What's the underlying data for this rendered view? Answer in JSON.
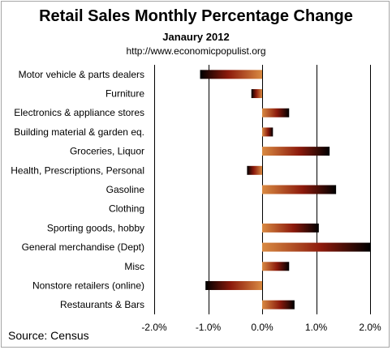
{
  "chart_data": {
    "type": "bar",
    "orientation": "horizontal",
    "title": "Retail Sales Monthly  Percentage Change",
    "subtitle": "Janaury 2012",
    "url": "http://www.economicpopulist.org",
    "source": "Source:  Census",
    "categories": [
      "Motor vehicle & parts dealers",
      "Furniture",
      "Electronics & appliance stores",
      "Building material & garden eq.",
      "Groceries, Liquor",
      "Health, Prescriptions, Personal",
      "Gasoline",
      "Clothing",
      "Sporting goods, hobby",
      "General merchandise (Dept)",
      "Misc",
      "Nonstore retailers (online)",
      "Restaurants & Bars"
    ],
    "values": [
      -1.15,
      -0.2,
      0.5,
      0.2,
      1.25,
      -0.28,
      1.37,
      0.0,
      1.05,
      2.0,
      0.5,
      -1.05,
      0.6
    ],
    "xlim": [
      -2.0,
      2.0
    ],
    "xticks": [
      -2.0,
      -1.0,
      0.0,
      1.0,
      2.0
    ],
    "xtick_labels": [
      "-2.0%",
      "-1.0%",
      "0.0%",
      "1.0%",
      "2.0%"
    ],
    "xlabel": "",
    "ylabel": "",
    "grid": "vertical",
    "legend": "none",
    "colors": {
      "bar_light": "#d2782e",
      "bar_mid": "#8c1a0c",
      "bar_dark": "#000000",
      "grid": "#000000",
      "frame": "#a6a6a6"
    }
  }
}
